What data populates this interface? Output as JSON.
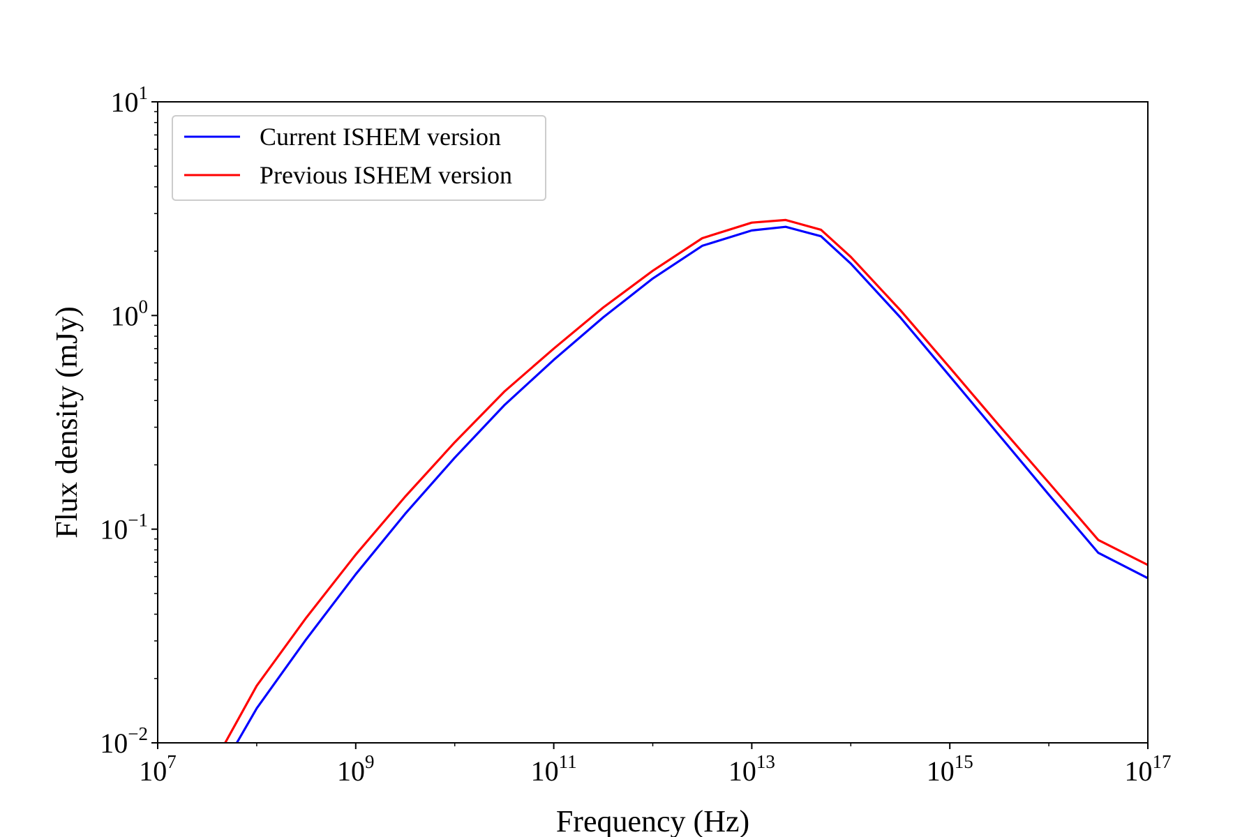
{
  "chart_data": {
    "type": "line",
    "xlabel": "Frequency (Hz)",
    "ylabel": "Flux density (mJy)",
    "xscale": "log",
    "yscale": "log",
    "xlim": [
      10000000.0,
      1e+17
    ],
    "ylim": [
      0.01,
      10
    ],
    "grid": false,
    "legend_position": "top-left",
    "x_ticks": [
      {
        "value": 10000000.0,
        "base": "10",
        "exp": "7"
      },
      {
        "value": 1000000000.0,
        "base": "10",
        "exp": "9"
      },
      {
        "value": 100000000000.0,
        "base": "10",
        "exp": "11"
      },
      {
        "value": 10000000000000.0,
        "base": "10",
        "exp": "13"
      },
      {
        "value": 1000000000000000.0,
        "base": "10",
        "exp": "15"
      },
      {
        "value": 1e+17,
        "base": "10",
        "exp": "17"
      }
    ],
    "y_ticks": [
      {
        "value": 0.01,
        "base": "10",
        "exp": "−2"
      },
      {
        "value": 0.1,
        "base": "10",
        "exp": "−1"
      },
      {
        "value": 1,
        "base": "10",
        "exp": "0"
      },
      {
        "value": 10,
        "base": "10",
        "exp": "1"
      }
    ],
    "series": [
      {
        "name": "Current ISHEM version",
        "color": "#0000ff",
        "x": [
          63000000.0,
          100000000.0,
          316000000.0,
          1000000000.0,
          3160000000.0,
          10000000000.0,
          31600000000.0,
          100000000000.0,
          316000000000.0,
          1000000000000.0,
          3160000000000.0,
          10000000000000.0,
          22000000000000.0,
          50000000000000.0,
          100000000000000.0,
          316000000000000.0,
          1000000000000000.0,
          3160000000000000.0,
          1e+16,
          3.16e+16,
          1e+17
        ],
        "y": [
          0.01,
          0.0145,
          0.0305,
          0.0615,
          0.118,
          0.216,
          0.38,
          0.62,
          0.98,
          1.49,
          2.12,
          2.5,
          2.6,
          2.35,
          1.75,
          0.98,
          0.52,
          0.275,
          0.145,
          0.0775,
          0.059
        ]
      },
      {
        "name": "Previous ISHEM version",
        "color": "#ff0000",
        "x": [
          48000000.0,
          100000000.0,
          316000000.0,
          1000000000.0,
          3160000000.0,
          10000000000.0,
          31600000000.0,
          100000000000.0,
          316000000000.0,
          1000000000000.0,
          3160000000000.0,
          10000000000000.0,
          22000000000000.0,
          50000000000000.0,
          100000000000000.0,
          316000000000000.0,
          1000000000000000.0,
          3160000000000000.0,
          1e+16,
          3.16e+16,
          1e+17
        ],
        "y": [
          0.01,
          0.0185,
          0.0385,
          0.076,
          0.142,
          0.255,
          0.44,
          0.7,
          1.09,
          1.62,
          2.3,
          2.72,
          2.8,
          2.52,
          1.88,
          1.06,
          0.57,
          0.305,
          0.165,
          0.089,
          0.068
        ]
      }
    ]
  }
}
